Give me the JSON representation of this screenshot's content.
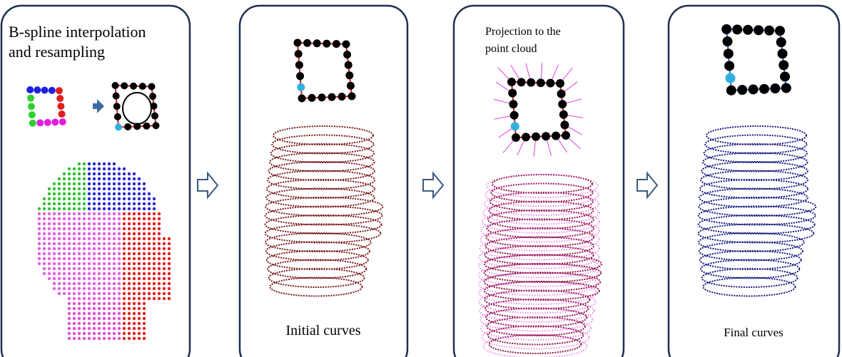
{
  "panels": [
    {
      "title": [
        "B-spline interpolation",
        "and resampling"
      ]
    },
    {
      "caption": "Initial curves"
    },
    {
      "title": [
        "Projection to the",
        "point cloud"
      ]
    },
    {
      "caption": "Final curves"
    }
  ]
}
